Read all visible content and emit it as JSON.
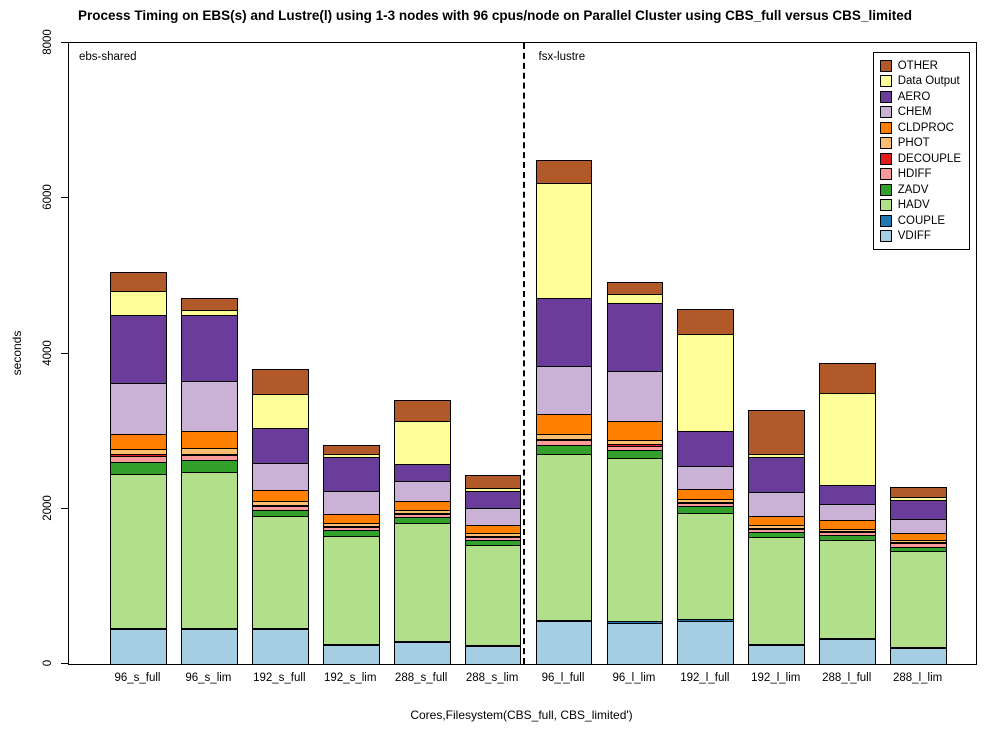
{
  "chart_data": {
    "type": "bar",
    "stacked": true,
    "title": "Process Timing on EBS(s) and Lustre(l) using 1-3 nodes with 96 cpus/node on Parallel Cluster using CBS_full versus CBS_limited",
    "xlabel": "Cores,Filesystem(CBS_full, CBS_limited')",
    "ylabel": "seconds",
    "ylim": [
      0,
      8000
    ],
    "yticks": [
      0,
      2000,
      4000,
      6000,
      8000
    ],
    "legend_position": "top-right",
    "grid": false,
    "categories": [
      "96_s_full",
      "96_s_lim",
      "192_s_full",
      "192_s_lim",
      "288_s_full",
      "288_s_lim",
      "96_l_full",
      "96_l_lim",
      "192_l_full",
      "192_l_lim",
      "288_l_full",
      "288_l_lim"
    ],
    "series": [
      {
        "name": "VDIFF",
        "color": "#A6CEE3",
        "values": [
          450,
          450,
          450,
          250,
          280,
          230,
          550,
          530,
          560,
          250,
          320,
          200
        ]
      },
      {
        "name": "COUPLE",
        "color": "#1F78B4",
        "values": [
          20,
          20,
          15,
          10,
          10,
          10,
          20,
          20,
          15,
          10,
          10,
          10
        ]
      },
      {
        "name": "HADV",
        "color": "#B2DF8A",
        "values": [
          1980,
          2010,
          1440,
          1390,
          1530,
          1290,
          2130,
          2100,
          1375,
          1370,
          1270,
          1240
        ]
      },
      {
        "name": "ZADV",
        "color": "#33A02C",
        "values": [
          150,
          150,
          80,
          70,
          70,
          70,
          120,
          110,
          80,
          70,
          60,
          60
        ]
      },
      {
        "name": "HDIFF",
        "color": "#FB9A99",
        "values": [
          80,
          60,
          50,
          40,
          40,
          40,
          60,
          50,
          40,
          40,
          40,
          40
        ]
      },
      {
        "name": "DECOUPLE",
        "color": "#E31A1C",
        "values": [
          30,
          20,
          20,
          15,
          15,
          10,
          20,
          20,
          15,
          15,
          10,
          10
        ]
      },
      {
        "name": "PHOT",
        "color": "#FDBF6F",
        "values": [
          60,
          70,
          40,
          35,
          35,
          30,
          70,
          60,
          35,
          35,
          30,
          30
        ]
      },
      {
        "name": "CLDPROC",
        "color": "#FF7F00",
        "values": [
          200,
          220,
          150,
          120,
          120,
          100,
          250,
          240,
          130,
          120,
          110,
          90
        ]
      },
      {
        "name": "CHEM",
        "color": "#CAB2D6",
        "values": [
          650,
          650,
          350,
          300,
          250,
          220,
          620,
          640,
          300,
          300,
          200,
          180
        ]
      },
      {
        "name": "AERO",
        "color": "#6A3D9A",
        "values": [
          880,
          850,
          450,
          440,
          230,
          230,
          880,
          880,
          450,
          460,
          250,
          250
        ]
      },
      {
        "name": "Data Output",
        "color": "#FFFF99",
        "values": [
          300,
          60,
          440,
          40,
          550,
          30,
          1480,
          120,
          1250,
          30,
          1180,
          40
        ]
      },
      {
        "name": "OTHER",
        "color": "#B15928",
        "values": [
          250,
          160,
          320,
          110,
          270,
          170,
          300,
          150,
          320,
          570,
          390,
          120
        ]
      }
    ],
    "annotations": {
      "left_region": "ebs-shared",
      "right_region": "fsx-lustre"
    },
    "separator": {
      "after_category_index": 5,
      "style": "dashed-vertical-line"
    }
  }
}
